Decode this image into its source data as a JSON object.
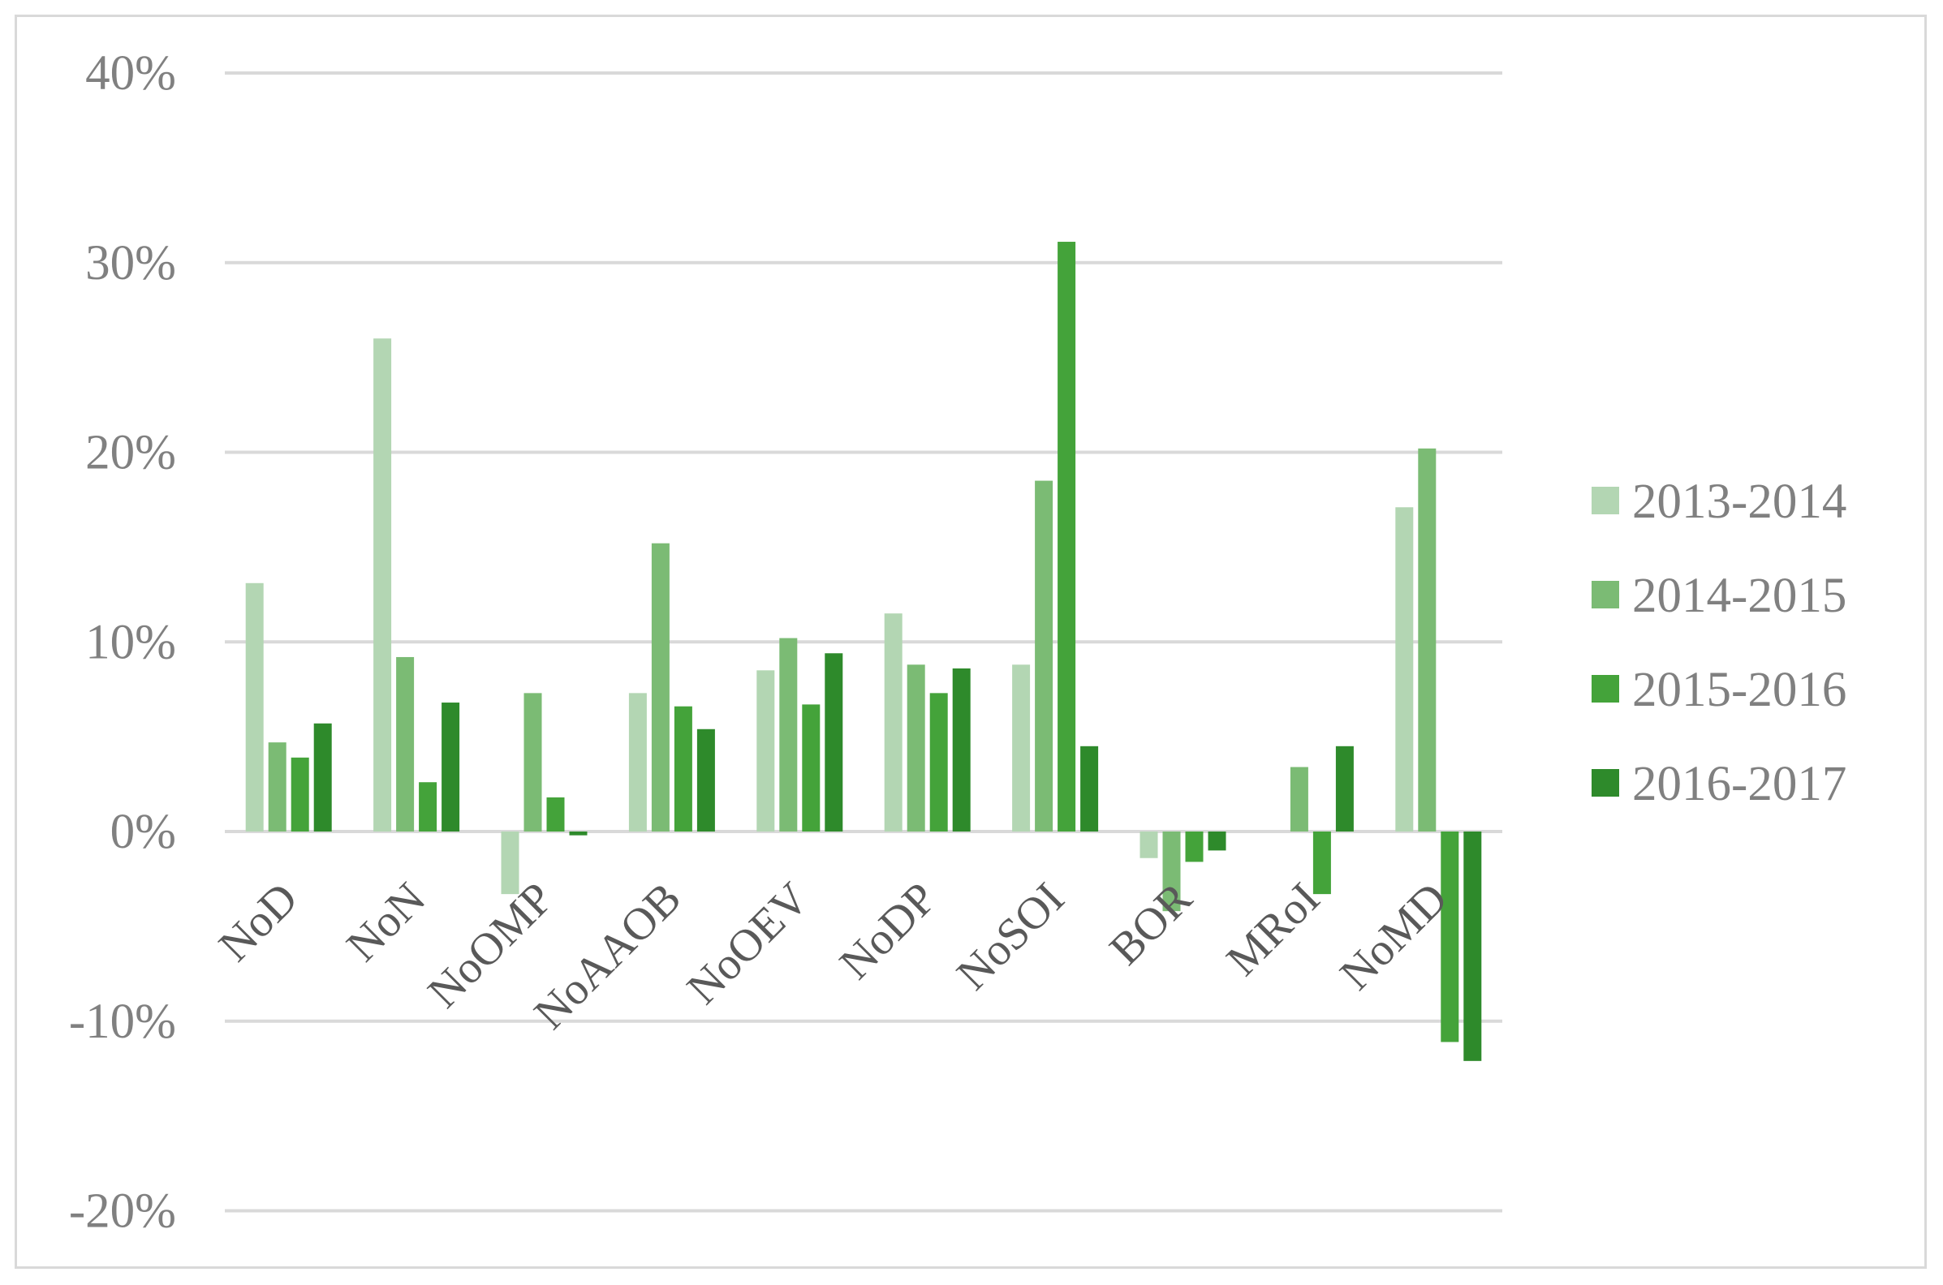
{
  "chart_data": {
    "type": "bar",
    "categories": [
      "NoD",
      "NoN",
      "NoOMP",
      "NoAAOB",
      "NoOEV",
      "NoDP",
      "NoSOI",
      "BOR",
      "MRoI",
      "NoMD"
    ],
    "series": [
      {
        "name": "2013-2014",
        "color": "#b3d6b3",
        "values": [
          13.1,
          26.0,
          -3.3,
          7.3,
          8.5,
          11.5,
          8.8,
          -1.4,
          0,
          17.1
        ]
      },
      {
        "name": "2014-2015",
        "color": "#7bbb74",
        "values": [
          4.7,
          9.2,
          7.3,
          15.2,
          10.2,
          8.8,
          18.5,
          -4.2,
          3.4,
          20.2
        ]
      },
      {
        "name": "2015-2016",
        "color": "#44a33a",
        "values": [
          3.9,
          2.6,
          1.8,
          6.6,
          6.7,
          7.3,
          31.1,
          -1.6,
          -3.3,
          -11.1
        ]
      },
      {
        "name": "2016-2017",
        "color": "#2e8a2b",
        "values": [
          5.7,
          6.8,
          -0.2,
          5.4,
          9.4,
          8.6,
          4.5,
          -1.0,
          4.5,
          -12.1
        ]
      }
    ],
    "yticks": [
      "40%",
      "30%",
      "20%",
      "10%",
      "0%",
      "-10%",
      "-20%"
    ],
    "ytick_values": [
      40,
      30,
      20,
      10,
      0,
      -10,
      -20
    ],
    "ylim": [
      -20,
      40
    ],
    "grid": true,
    "legend_position": "right"
  }
}
